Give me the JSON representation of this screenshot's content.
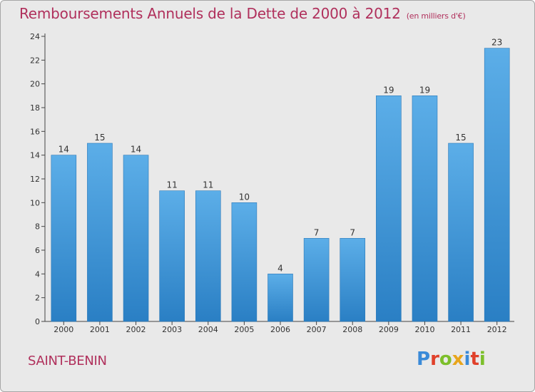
{
  "header": {
    "title": "Remboursements Annuels de la Dette de 2000 à 2012",
    "unit": "(en milliers d'€)"
  },
  "footer": {
    "commune": "SAINT-BENIN",
    "logo_text": "Proxiti"
  },
  "colors": {
    "accent": "#b0305c",
    "bar_top": "#5caee8",
    "bar_bottom": "#2a7fc4",
    "background": "#e9e9e9"
  },
  "chart_data": {
    "type": "bar",
    "categories": [
      "2000",
      "2001",
      "2002",
      "2003",
      "2004",
      "2005",
      "2006",
      "2007",
      "2008",
      "2009",
      "2010",
      "2011",
      "2012"
    ],
    "values": [
      14,
      15,
      14,
      11,
      11,
      10,
      4,
      7,
      7,
      19,
      19,
      15,
      23
    ],
    "data_labels": [
      "14",
      "15",
      "14",
      "11",
      "11",
      "10",
      "4",
      "7",
      "7",
      "19",
      "19",
      "15",
      "23"
    ],
    "title": "Remboursements Annuels de la Dette de 2000 à 2012",
    "xlabel": "",
    "ylabel": "",
    "ylim": [
      0,
      24
    ],
    "yticks": [
      0,
      2,
      4,
      6,
      8,
      10,
      12,
      14,
      16,
      18,
      20,
      22,
      24
    ],
    "grid": false,
    "legend": "none"
  }
}
